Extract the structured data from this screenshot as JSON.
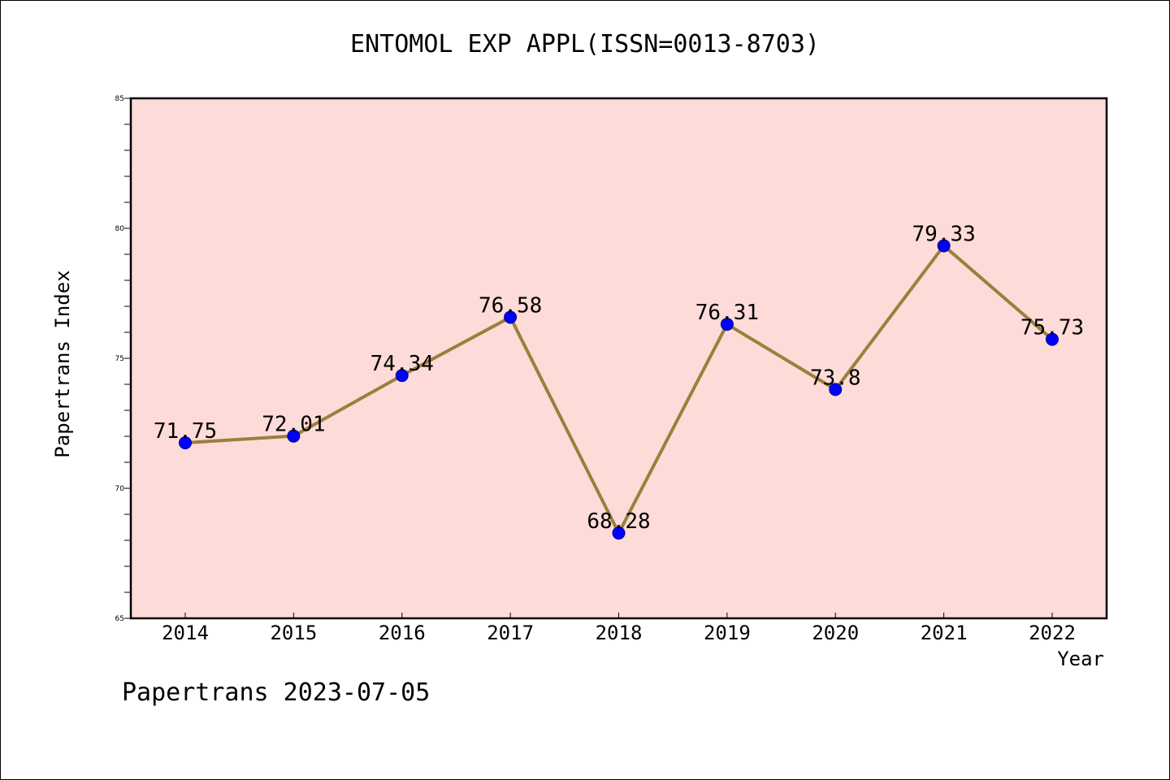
{
  "chart_data": {
    "type": "line",
    "title": "ENTOMOL EXP APPL(ISSN=0013-8703)",
    "xlabel": "Year",
    "ylabel": "Papertrans Index",
    "x": [
      "2014",
      "2015",
      "2016",
      "2017",
      "2018",
      "2019",
      "2020",
      "2021",
      "2022"
    ],
    "values": [
      71.75,
      72.01,
      74.34,
      76.58,
      68.28,
      76.31,
      73.8,
      79.33,
      75.73
    ],
    "data_labels": [
      "71.75",
      "72.01",
      "74.34",
      "76.58",
      "68.28",
      "76.31",
      "73.8",
      "79.33",
      "75.73"
    ],
    "ylim": [
      65,
      85
    ],
    "yticks": [
      "65",
      "70",
      "75",
      "80",
      "85"
    ],
    "grid": false,
    "colors": {
      "plot_background": "#fddbd8",
      "line": "#9b7f3c",
      "marker": "#0000ff",
      "marker_edge": "#00008b"
    }
  },
  "footer": "Papertrans 2023-07-05"
}
